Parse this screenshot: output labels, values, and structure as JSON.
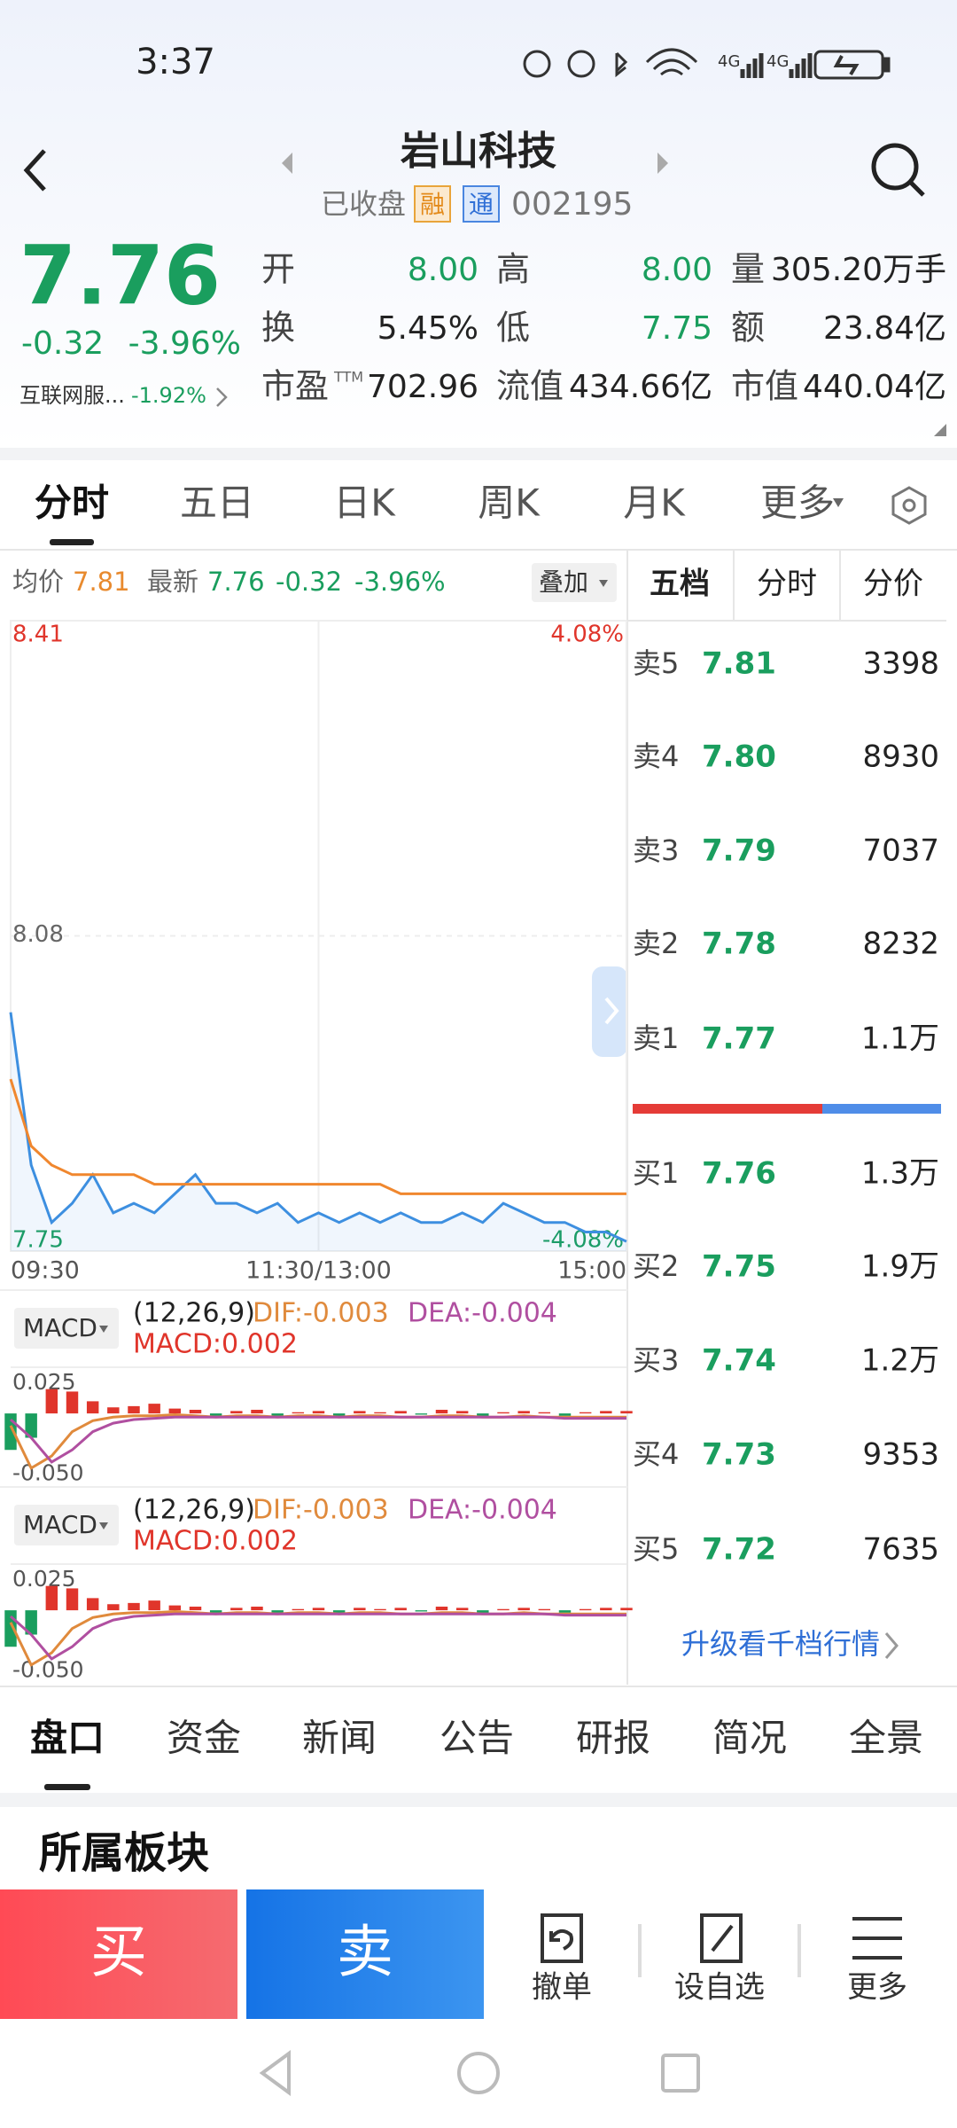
{
  "status_bar": {
    "time": "3:37"
  },
  "header": {
    "title": "岩山科技",
    "status": "已收盘",
    "badges": [
      "融",
      "通"
    ],
    "code": "002195"
  },
  "quote": {
    "price": "7.76",
    "change": "-0.32",
    "change_pct": "-3.96%",
    "sector": "互联网服...",
    "sector_pct": "-1.92%",
    "fields": [
      {
        "label": "开",
        "value": "8.00",
        "color": "#1a9e5e"
      },
      {
        "label": "高",
        "value": "8.00",
        "color": "#1a9e5e"
      },
      {
        "label": "量",
        "value": "305.20万手",
        "color": "#222"
      },
      {
        "label": "换",
        "value": "5.45%",
        "color": "#222"
      },
      {
        "label": "低",
        "value": "7.75",
        "color": "#1a9e5e"
      },
      {
        "label": "额",
        "value": "23.84亿",
        "color": "#222"
      },
      {
        "label": "市盈",
        "sup": "TTM",
        "value": "702.96",
        "color": "#222"
      },
      {
        "label": "流值",
        "value": "434.66亿",
        "color": "#222"
      },
      {
        "label": "市值",
        "value": "440.04亿",
        "color": "#222"
      }
    ]
  },
  "chart_tabs": [
    "分时",
    "五日",
    "日K",
    "周K",
    "月K",
    "更多"
  ],
  "info_bar": {
    "avg_label": "均价",
    "avg": "7.81",
    "latest_label": "最新",
    "latest": "7.76",
    "change": "-0.32",
    "change_pct": "-3.96%",
    "overlay": "叠加"
  },
  "chart_data": [
    {
      "type": "line",
      "x": [
        0,
        8,
        16,
        24,
        32,
        40,
        48,
        56,
        64,
        72,
        80,
        88,
        96,
        104,
        112,
        120,
        128,
        136,
        144,
        152,
        160,
        168,
        176,
        184,
        192,
        200,
        208,
        216,
        224,
        232,
        240
      ],
      "xlim": [
        0,
        240
      ],
      "xticks": [
        {
          "value": 0,
          "label": "09:30"
        },
        {
          "value": 120,
          "label": "11:30/13:00"
        },
        {
          "value": 240,
          "label": "15:00"
        }
      ],
      "ylim": [
        7.75,
        8.41
      ],
      "yticks": [
        7.75,
        8.08,
        8.41
      ],
      "y2lim": [
        -4.08,
        4.08
      ],
      "y2ticks": [
        {
          "value": 4.08,
          "label": "4.08%"
        },
        {
          "value": -4.08,
          "label": "-4.08%"
        }
      ],
      "series": [
        {
          "color": "#3d8fe0",
          "values": [
            8.0,
            7.84,
            7.78,
            7.8,
            7.83,
            7.79,
            7.8,
            7.79,
            7.81,
            7.83,
            7.8,
            7.8,
            7.79,
            7.8,
            7.78,
            7.79,
            7.78,
            7.79,
            7.78,
            7.79,
            7.78,
            7.78,
            7.79,
            7.78,
            7.8,
            7.79,
            7.78,
            7.78,
            7.77,
            7.77,
            7.76
          ]
        },
        {
          "color": "#f0872e",
          "values": [
            7.93,
            7.86,
            7.84,
            7.83,
            7.83,
            7.83,
            7.83,
            7.82,
            7.82,
            7.82,
            7.82,
            7.82,
            7.82,
            7.82,
            7.82,
            7.82,
            7.82,
            7.82,
            7.82,
            7.81,
            7.81,
            7.81,
            7.81,
            7.81,
            7.81,
            7.81,
            7.81,
            7.81,
            7.81,
            7.81,
            7.81
          ]
        }
      ]
    },
    {
      "type": "macd",
      "indicator": "MACD",
      "params": "(12,26,9)",
      "dif_label": "DIF:-0.003",
      "dea_label": "DEA:-0.004",
      "macd_label": "MACD:0.002",
      "x": [
        0,
        8,
        16,
        24,
        32,
        40,
        48,
        56,
        64,
        72,
        80,
        88,
        96,
        104,
        112,
        120,
        128,
        136,
        144,
        152,
        160,
        168,
        176,
        184,
        192,
        200,
        208,
        216,
        224,
        232,
        240
      ],
      "xlim": [
        0,
        240
      ],
      "ylim": [
        -0.059,
        0.038
      ],
      "yticks": [
        0.025,
        {
          "value": -0.05,
          "label": "-0.050"
        }
      ],
      "histogram": [
        -0.03,
        -0.02,
        0.02,
        0.018,
        0.01,
        0.005,
        0.006,
        0.008,
        0.004,
        0.003,
        -0.002,
        0.002,
        0.003,
        -0.002,
        0.001,
        0.002,
        -0.003,
        0.002,
        0.001,
        0.002,
        -0.001,
        0.003,
        0.002,
        -0.003,
        0.001,
        0.002,
        0.001,
        -0.002,
        0.001,
        0.002,
        0.002
      ],
      "dif": {
        "color": "#e08a3c",
        "values": [
          -0.01,
          -0.045,
          -0.035,
          -0.015,
          -0.006,
          -0.003,
          -0.002,
          -0.002,
          -0.001,
          -0.002,
          -0.003,
          -0.002,
          -0.002,
          -0.003,
          -0.002,
          -0.002,
          -0.003,
          -0.002,
          -0.002,
          -0.003,
          -0.003,
          -0.002,
          -0.002,
          -0.003,
          -0.003,
          -0.002,
          -0.003,
          -0.003,
          -0.003,
          -0.003,
          -0.003
        ]
      },
      "dea": {
        "color": "#b04fa0",
        "values": [
          -0.005,
          -0.02,
          -0.04,
          -0.03,
          -0.015,
          -0.008,
          -0.005,
          -0.004,
          -0.003,
          -0.003,
          -0.003,
          -0.003,
          -0.003,
          -0.003,
          -0.003,
          -0.003,
          -0.003,
          -0.003,
          -0.003,
          -0.003,
          -0.003,
          -0.003,
          -0.003,
          -0.003,
          -0.003,
          -0.003,
          -0.003,
          -0.004,
          -0.004,
          -0.004,
          -0.004
        ]
      }
    },
    {
      "type": "macd",
      "indicator": "MACD",
      "params": "(12,26,9)",
      "dif_label": "DIF:-0.003",
      "dea_label": "DEA:-0.004",
      "macd_label": "MACD:0.002",
      "x": [
        0,
        8,
        16,
        24,
        32,
        40,
        48,
        56,
        64,
        72,
        80,
        88,
        96,
        104,
        112,
        120,
        128,
        136,
        144,
        152,
        160,
        168,
        176,
        184,
        192,
        200,
        208,
        216,
        224,
        232,
        240
      ],
      "xlim": [
        0,
        240
      ],
      "ylim": [
        -0.059,
        0.038
      ],
      "yticks": [
        0.025,
        {
          "value": -0.05,
          "label": "-0.050"
        }
      ],
      "histogram": [
        -0.03,
        -0.02,
        0.02,
        0.018,
        0.01,
        0.005,
        0.006,
        0.008,
        0.004,
        0.003,
        -0.002,
        0.002,
        0.003,
        -0.002,
        0.001,
        0.002,
        -0.003,
        0.002,
        0.001,
        0.002,
        -0.001,
        0.003,
        0.002,
        -0.003,
        0.001,
        0.002,
        0.001,
        -0.002,
        0.001,
        0.002,
        0.002
      ],
      "dif": {
        "color": "#e08a3c",
        "values": [
          -0.01,
          -0.045,
          -0.035,
          -0.015,
          -0.006,
          -0.003,
          -0.002,
          -0.002,
          -0.001,
          -0.002,
          -0.003,
          -0.002,
          -0.002,
          -0.003,
          -0.002,
          -0.002,
          -0.003,
          -0.002,
          -0.002,
          -0.003,
          -0.003,
          -0.002,
          -0.002,
          -0.003,
          -0.003,
          -0.002,
          -0.003,
          -0.003,
          -0.003,
          -0.003,
          -0.003
        ]
      },
      "dea": {
        "color": "#b04fa0",
        "values": [
          -0.005,
          -0.02,
          -0.04,
          -0.03,
          -0.015,
          -0.008,
          -0.005,
          -0.004,
          -0.003,
          -0.003,
          -0.003,
          -0.003,
          -0.003,
          -0.003,
          -0.003,
          -0.003,
          -0.003,
          -0.003,
          -0.003,
          -0.003,
          -0.003,
          -0.003,
          -0.003,
          -0.003,
          -0.003,
          -0.003,
          -0.003,
          -0.004,
          -0.004,
          -0.004,
          -0.004
        ]
      }
    }
  ],
  "order_book": {
    "tabs": [
      "五档",
      "分时",
      "分价"
    ],
    "sell": [
      {
        "label": "卖5",
        "price": "7.81",
        "volume": "3398"
      },
      {
        "label": "卖4",
        "price": "7.80",
        "volume": "8930"
      },
      {
        "label": "卖3",
        "price": "7.79",
        "volume": "7037"
      },
      {
        "label": "卖2",
        "price": "7.78",
        "volume": "8232"
      },
      {
        "label": "卖1",
        "price": "7.77",
        "volume": "1.1万"
      }
    ],
    "buy": [
      {
        "label": "买1",
        "price": "7.76",
        "volume": "1.3万"
      },
      {
        "label": "买2",
        "price": "7.75",
        "volume": "1.9万"
      },
      {
        "label": "买3",
        "price": "7.74",
        "volume": "1.2万"
      },
      {
        "label": "买4",
        "price": "7.73",
        "volume": "9353"
      },
      {
        "label": "买5",
        "price": "7.72",
        "volume": "7635"
      }
    ],
    "link": "升级看千档行情"
  },
  "bottom_tabs": [
    "盘口",
    "资金",
    "新闻",
    "公告",
    "研报",
    "简况",
    "全景"
  ],
  "section_title": "所属板块",
  "actions": {
    "buy": "买",
    "sell": "卖",
    "tools": [
      "撤单",
      "设自选",
      "更多"
    ]
  }
}
